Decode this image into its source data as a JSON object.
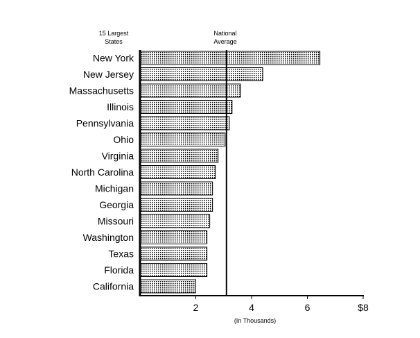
{
  "chart_data": {
    "type": "bar",
    "orientation": "horizontal",
    "title": "",
    "category_header_line1": "15 Largest",
    "category_header_line2": "States",
    "reference_label_line1": "National",
    "reference_label_line2": "Average",
    "reference_value": 3.1,
    "categories": [
      "New York",
      "New Jersey",
      "Massachusetts",
      "Illinois",
      "Pennsylvania",
      "Ohio",
      "Virginia",
      "North Carolina",
      "Michigan",
      "Georgia",
      "Missouri",
      "Washington",
      "Texas",
      "Florida",
      "California"
    ],
    "values": [
      6.45,
      4.4,
      3.6,
      3.3,
      3.2,
      3.05,
      2.8,
      2.7,
      2.6,
      2.6,
      2.5,
      2.4,
      2.4,
      2.4,
      2.0
    ],
    "x_ticks": [
      "2",
      "4",
      "6",
      "$8"
    ],
    "x_tick_values": [
      2,
      4,
      6,
      8
    ],
    "xlabel": "(In Thousands)",
    "xlim": [
      0,
      8
    ],
    "grid": false,
    "bar_fill": "#d8d8d8",
    "bar_stroke": "#000000"
  }
}
